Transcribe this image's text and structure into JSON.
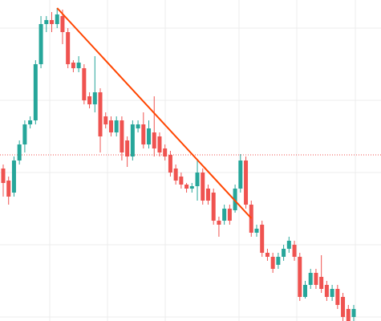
{
  "chart_data": {
    "type": "candlestick",
    "open": [
      190,
      175,
      160,
      200,
      220,
      245,
      250,
      320,
      370,
      375,
      370,
      380,
      360,
      322,
      315,
      315,
      280,
      270,
      285,
      255,
      250,
      235,
      250,
      225,
      205,
      240,
      245,
      220,
      235,
      230,
      215,
      207,
      190,
      180,
      170,
      165,
      168,
      185,
      165,
      160,
      125,
      125,
      140,
      138,
      165,
      200,
      145,
      110,
      120,
      85,
      80,
      70,
      80,
      90,
      95,
      80,
      30,
      45,
      60,
      55,
      45,
      30,
      40,
      30,
      15,
      5
    ],
    "high": [
      195,
      180,
      205,
      225,
      250,
      255,
      325,
      380,
      380,
      385,
      390,
      388,
      365,
      325,
      330,
      320,
      285,
      330,
      290,
      260,
      255,
      255,
      255,
      230,
      250,
      250,
      260,
      250,
      280,
      235,
      220,
      212,
      195,
      185,
      172,
      172,
      200,
      190,
      170,
      165,
      130,
      145,
      145,
      170,
      208,
      205,
      150,
      120,
      125,
      90,
      85,
      85,
      95,
      105,
      100,
      85,
      50,
      65,
      65,
      82,
      50,
      45,
      45,
      35,
      20,
      20
    ],
    "low": [
      155,
      145,
      155,
      195,
      210,
      240,
      245,
      315,
      360,
      360,
      365,
      345,
      315,
      310,
      310,
      270,
      265,
      260,
      210,
      240,
      230,
      230,
      200,
      192,
      200,
      235,
      215,
      215,
      205,
      205,
      200,
      180,
      170,
      165,
      160,
      160,
      150,
      145,
      145,
      120,
      105,
      120,
      120,
      135,
      160,
      140,
      105,
      105,
      80,
      75,
      60,
      65,
      75,
      85,
      75,
      25,
      28,
      40,
      40,
      35,
      25,
      25,
      15,
      0,
      0,
      0
    ],
    "close": [
      172,
      155,
      200,
      220,
      245,
      250,
      320,
      370,
      375,
      370,
      382,
      360,
      320,
      315,
      322,
      275,
      270,
      285,
      230,
      245,
      235,
      250,
      210,
      205,
      245,
      245,
      220,
      240,
      215,
      210,
      205,
      185,
      175,
      170,
      165,
      168,
      185,
      150,
      150,
      125,
      120,
      140,
      125,
      165,
      200,
      145,
      110,
      115,
      85,
      80,
      65,
      80,
      90,
      100,
      80,
      30,
      45,
      60,
      45,
      40,
      30,
      40,
      20,
      5,
      0,
      15
    ],
    "up_color": "#26a69a",
    "down_color": "#ef5350",
    "ylim": [
      0,
      400
    ],
    "trendline": {
      "from_index": 10,
      "to_index": 46,
      "values": [
        390,
        128
      ],
      "color": "#ff4500"
    },
    "price_line": {
      "value": 207,
      "color": "#ef5350"
    }
  }
}
